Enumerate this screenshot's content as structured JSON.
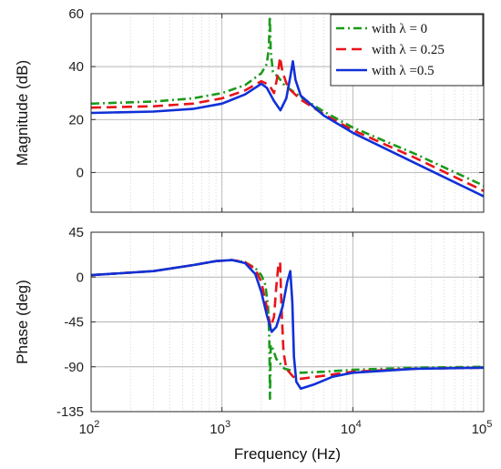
{
  "chart_data": [
    {
      "type": "line",
      "panel": "magnitude",
      "title": "",
      "xlabel": "",
      "ylabel": "Magnitude (dB)",
      "xscale": "log",
      "xlim": [
        100,
        100000
      ],
      "ylim": [
        -15,
        60
      ],
      "yticks": [
        0,
        20,
        40,
        60
      ],
      "grid": true,
      "legend_position": "top-right",
      "series": [
        {
          "name": "with λ = 0",
          "color": "#1a9a1a",
          "dash": "dashdot",
          "points": [
            [
              100,
              26
            ],
            [
              300,
              26.8
            ],
            [
              600,
              28
            ],
            [
              1000,
              30
            ],
            [
              1500,
              33
            ],
            [
              2000,
              37.5
            ],
            [
              2200,
              41
            ],
            [
              2280,
              47
            ],
            [
              2320,
              59
            ],
            [
              2360,
              46
            ],
            [
              2450,
              38
            ],
            [
              2700,
              36
            ],
            [
              3000,
              33
            ],
            [
              4000,
              28.5
            ],
            [
              6000,
              23
            ],
            [
              10000,
              17
            ],
            [
              30000,
              7
            ],
            [
              100000,
              -5
            ]
          ]
        },
        {
          "name": "with λ = 0.25",
          "color": "#e8141a",
          "dash": "dashed",
          "points": [
            [
              100,
              24.5
            ],
            [
              300,
              25
            ],
            [
              600,
              26
            ],
            [
              1000,
              28
            ],
            [
              1500,
              31
            ],
            [
              2000,
              34.5
            ],
            [
              2300,
              33
            ],
            [
              2500,
              30
            ],
            [
              2650,
              36
            ],
            [
              2780,
              43.5
            ],
            [
              2900,
              38
            ],
            [
              3200,
              32
            ],
            [
              4000,
              27.5
            ],
            [
              6000,
              22
            ],
            [
              10000,
              16
            ],
            [
              30000,
              5.5
            ],
            [
              100000,
              -7
            ]
          ]
        },
        {
          "name": "with λ =0.5",
          "color": "#1030d8",
          "dash": "solid",
          "points": [
            [
              100,
              22.5
            ],
            [
              300,
              23
            ],
            [
              600,
              24
            ],
            [
              1000,
              26
            ],
            [
              1500,
              29.5
            ],
            [
              2000,
              33.5
            ],
            [
              2200,
              32
            ],
            [
              2500,
              27
            ],
            [
              2800,
              23.5
            ],
            [
              3100,
              28
            ],
            [
              3350,
              37
            ],
            [
              3480,
              42
            ],
            [
              3650,
              35
            ],
            [
              4000,
              29
            ],
            [
              6000,
              21.5
            ],
            [
              10000,
              15
            ],
            [
              30000,
              3.5
            ],
            [
              100000,
              -9
            ]
          ]
        }
      ]
    },
    {
      "type": "line",
      "panel": "phase",
      "title": "",
      "xlabel": "Frequency  (Hz)",
      "ylabel": "Phase (deg)",
      "xscale": "log",
      "xlim": [
        100,
        100000
      ],
      "ylim": [
        -135,
        45
      ],
      "yticks": [
        -135,
        -90,
        -45,
        0,
        45
      ],
      "xticks": [
        {
          "value": 100,
          "base": "10",
          "exp": "2"
        },
        {
          "value": 1000,
          "base": "10",
          "exp": "3"
        },
        {
          "value": 10000,
          "base": "10",
          "exp": "4"
        },
        {
          "value": 100000,
          "base": "10",
          "exp": "5"
        }
      ],
      "grid": true,
      "series": [
        {
          "name": "with λ = 0",
          "color": "#1a9a1a",
          "dash": "dashdot",
          "points": [
            [
              100,
              2
            ],
            [
              300,
              6
            ],
            [
              600,
              12
            ],
            [
              900,
              16
            ],
            [
              1200,
              17
            ],
            [
              1500,
              15
            ],
            [
              1800,
              9
            ],
            [
              2000,
              2
            ],
            [
              2150,
              -8
            ],
            [
              2250,
              -30
            ],
            [
              2300,
              -60
            ],
            [
              2330,
              -122
            ],
            [
              2360,
              -68
            ],
            [
              2450,
              -72
            ],
            [
              2600,
              -82
            ],
            [
              3000,
              -92
            ],
            [
              4000,
              -96
            ],
            [
              6000,
              -95
            ],
            [
              10000,
              -93
            ],
            [
              30000,
              -91
            ],
            [
              100000,
              -90
            ]
          ]
        },
        {
          "name": "with λ = 0.25",
          "color": "#e8141a",
          "dash": "dashed",
          "points": [
            [
              100,
              2
            ],
            [
              300,
              6
            ],
            [
              600,
              12
            ],
            [
              900,
              16
            ],
            [
              1200,
              17
            ],
            [
              1500,
              15
            ],
            [
              1800,
              8
            ],
            [
              2000,
              -5
            ],
            [
              2200,
              -30
            ],
            [
              2350,
              -50
            ],
            [
              2500,
              -40
            ],
            [
              2600,
              -10
            ],
            [
              2700,
              12
            ],
            [
              2780,
              15
            ],
            [
              2850,
              -30
            ],
            [
              2950,
              -75
            ],
            [
              3100,
              -92
            ],
            [
              3500,
              -100
            ],
            [
              4000,
              -102
            ],
            [
              6000,
              -99
            ],
            [
              10000,
              -95
            ],
            [
              30000,
              -92
            ],
            [
              100000,
              -91
            ]
          ]
        },
        {
          "name": "with λ =0.5",
          "color": "#1030d8",
          "dash": "solid",
          "points": [
            [
              100,
              2
            ],
            [
              300,
              6
            ],
            [
              600,
              12
            ],
            [
              900,
              16
            ],
            [
              1200,
              17
            ],
            [
              1500,
              14
            ],
            [
              1800,
              3
            ],
            [
              2000,
              -15
            ],
            [
              2200,
              -38
            ],
            [
              2400,
              -55
            ],
            [
              2600,
              -50
            ],
            [
              2900,
              -30
            ],
            [
              3150,
              -5
            ],
            [
              3330,
              6
            ],
            [
              3450,
              -25
            ],
            [
              3550,
              -80
            ],
            [
              3700,
              -105
            ],
            [
              4000,
              -112
            ],
            [
              5000,
              -108
            ],
            [
              7000,
              -100
            ],
            [
              10000,
              -96
            ],
            [
              30000,
              -92
            ],
            [
              100000,
              -91
            ]
          ]
        }
      ]
    }
  ]
}
